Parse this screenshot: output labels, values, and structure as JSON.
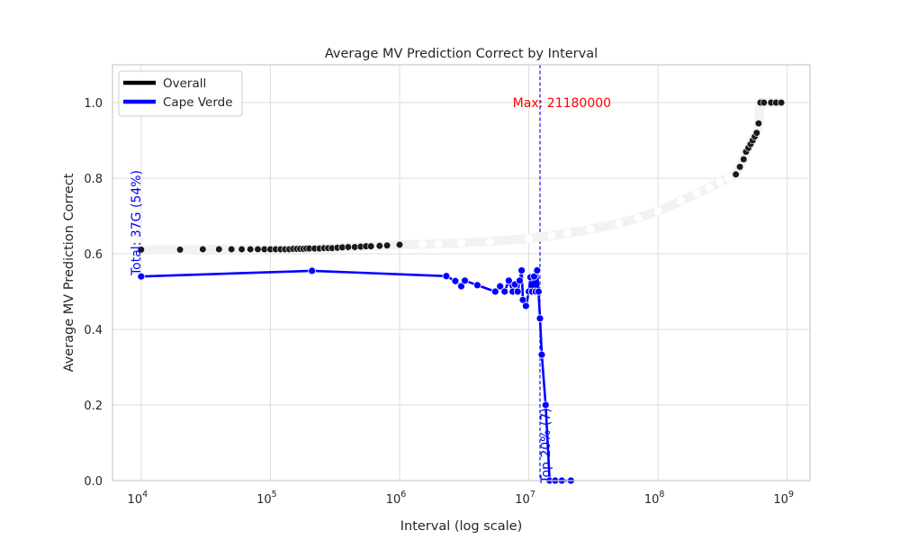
{
  "chart_data": {
    "type": "line",
    "title": "Average MV Prediction Correct by Interval",
    "xlabel": "Interval (log scale)",
    "ylabel": "Average MV Prediction Correct",
    "xscale": "log",
    "xlim": [
      6000,
      1500000000
    ],
    "ylim": [
      0,
      1.1
    ],
    "x_ticks": [
      {
        "value": 10000,
        "base": "10",
        "exp": "4"
      },
      {
        "value": 100000,
        "base": "10",
        "exp": "5"
      },
      {
        "value": 1000000,
        "base": "10",
        "exp": "6"
      },
      {
        "value": 10000000,
        "base": "10",
        "exp": "7"
      },
      {
        "value": 100000000,
        "base": "10",
        "exp": "8"
      },
      {
        "value": 1000000000,
        "base": "10",
        "exp": "9"
      }
    ],
    "y_ticks": [
      {
        "value": 0.0,
        "label": "0.0"
      },
      {
        "value": 0.2,
        "label": "0.2"
      },
      {
        "value": 0.4,
        "label": "0.4"
      },
      {
        "value": 0.6,
        "label": "0.6"
      },
      {
        "value": 0.8,
        "label": "0.8"
      },
      {
        "value": 1.0,
        "label": "1.0"
      }
    ],
    "grid": true,
    "legend_position": "top-left",
    "series": [
      {
        "name": "Overall",
        "color": "#000000",
        "marker_color": "#1a1a1a",
        "x": [
          10000,
          20000,
          30000,
          40000,
          50000,
          60000,
          70000,
          80000,
          90000,
          100000,
          110000,
          120000,
          130000,
          140000,
          150000,
          160000,
          170000,
          180000,
          190000,
          200000,
          220000,
          240000,
          260000,
          280000,
          300000,
          330000,
          360000,
          400000,
          450000,
          500000,
          550000,
          600000,
          700000,
          800000,
          1000000,
          1500000,
          2000000,
          3000000,
          5000000,
          10000000,
          15000000,
          20000000,
          30000000,
          50000000,
          70000000,
          100000000,
          150000000,
          200000000,
          250000000,
          300000000,
          350000000,
          400000000,
          430000000,
          460000000,
          480000000,
          500000000,
          520000000,
          540000000,
          560000000,
          580000000,
          600000000,
          620000000,
          660000000,
          750000000,
          820000000,
          900000000
        ],
        "y": [
          0.611,
          0.611,
          0.612,
          0.612,
          0.612,
          0.612,
          0.612,
          0.612,
          0.612,
          0.612,
          0.612,
          0.612,
          0.612,
          0.612,
          0.613,
          0.613,
          0.613,
          0.613,
          0.614,
          0.614,
          0.614,
          0.614,
          0.615,
          0.615,
          0.615,
          0.616,
          0.617,
          0.618,
          0.618,
          0.619,
          0.62,
          0.62,
          0.621,
          0.622,
          0.624,
          0.625,
          0.627,
          0.629,
          0.633,
          0.64,
          0.648,
          0.655,
          0.665,
          0.68,
          0.695,
          0.712,
          0.74,
          0.76,
          0.775,
          0.79,
          0.8,
          0.81,
          0.83,
          0.85,
          0.87,
          0.88,
          0.89,
          0.9,
          0.91,
          0.92,
          0.945,
          1.0,
          1.0,
          1.0,
          1.0,
          1.0
        ]
      },
      {
        "name": "Cape Verde",
        "color": "#0000ff",
        "x": [
          10000,
          210000,
          2300000,
          2700000,
          3000000,
          3200000,
          4000000,
          5500000,
          6000000,
          6500000,
          7000000,
          7500000,
          7800000,
          8200000,
          8500000,
          8800000,
          9000000,
          9500000,
          10000000,
          10300000,
          10600000,
          11000000,
          11300000,
          11600000,
          11900000,
          12200000,
          12600000,
          13500000,
          14500000,
          16000000,
          18000000,
          21180000
        ],
        "y": [
          0.54,
          0.555,
          0.541,
          0.528,
          0.514,
          0.529,
          0.517,
          0.5,
          0.514,
          0.5,
          0.529,
          0.5,
          0.519,
          0.5,
          0.529,
          0.556,
          0.478,
          0.462,
          0.5,
          0.538,
          0.5,
          0.54,
          0.5,
          0.556,
          0.5,
          0.429,
          0.333,
          0.2,
          0.0,
          0.0,
          0.0,
          0.0
        ]
      }
    ],
    "annotations": {
      "max_label": "Max: 21180000",
      "max_x": 21180000,
      "total_label": "Total: 37G (54%)",
      "top_label": "Top 20% (7)",
      "top_line_x": 12200000
    }
  }
}
